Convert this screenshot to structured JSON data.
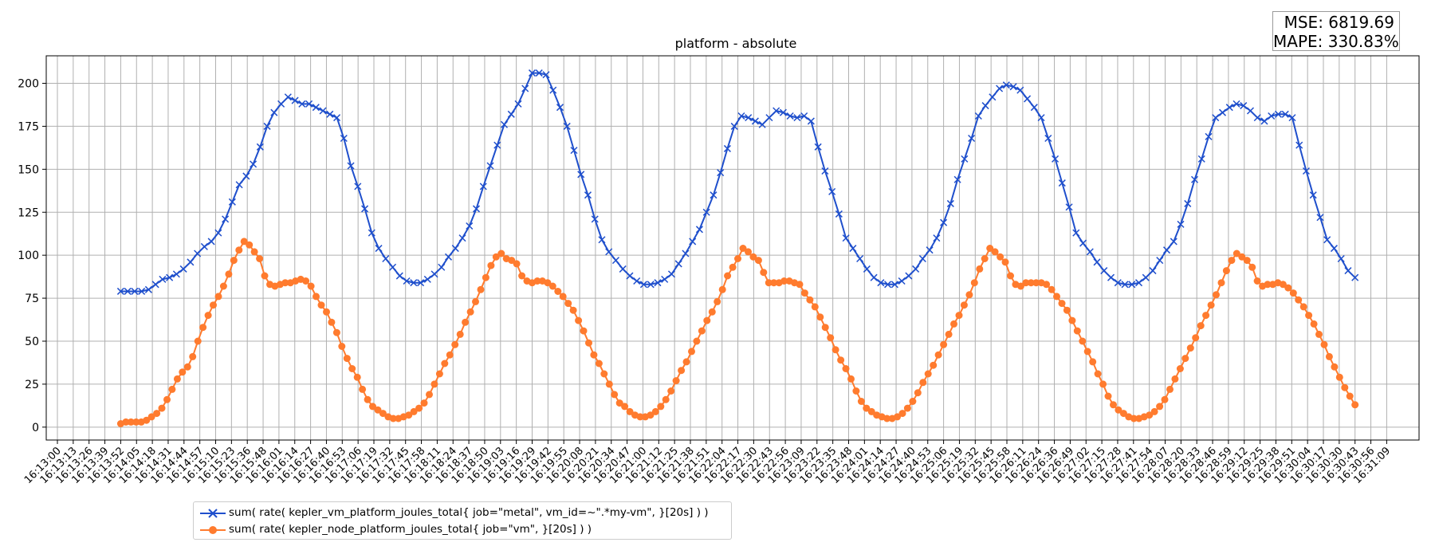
{
  "metrics": {
    "mse_text": "MSE: 6819.69",
    "mape_text": "MAPE: 330.83%"
  },
  "chart_data": {
    "type": "line",
    "title": "platform - absolute",
    "xlabel": "",
    "ylabel": "",
    "ylim": [
      -7.5,
      216
    ],
    "yticks": [
      0,
      25,
      50,
      75,
      100,
      125,
      150,
      175,
      200
    ],
    "grid": true,
    "legend_placement": "bottom-left",
    "x_tick_labels": [
      "16:13:00",
      "16:13:13",
      "16:13:26",
      "16:13:39",
      "16:13:52",
      "16:14:05",
      "16:14:18",
      "16:14:31",
      "16:14:44",
      "16:14:57",
      "16:15:10",
      "16:15:23",
      "16:15:36",
      "16:15:48",
      "16:16:01",
      "16:16:14",
      "16:16:27",
      "16:16:40",
      "16:16:53",
      "16:17:06",
      "16:17:19",
      "16:17:32",
      "16:17:45",
      "16:17:58",
      "16:18:11",
      "16:18:24",
      "16:18:37",
      "16:18:50",
      "16:19:03",
      "16:19:16",
      "16:19:29",
      "16:19:42",
      "16:19:55",
      "16:20:08",
      "16:20:21",
      "16:20:34",
      "16:20:47",
      "16:21:00",
      "16:21:12",
      "16:21:25",
      "16:21:38",
      "16:21:51",
      "16:22:04",
      "16:22:17",
      "16:22:30",
      "16:22:43",
      "16:22:56",
      "16:23:09",
      "16:23:22",
      "16:23:35",
      "16:23:48",
      "16:24:01",
      "16:24:14",
      "16:24:27",
      "16:24:40",
      "16:24:53",
      "16:25:06",
      "16:25:19",
      "16:25:32",
      "16:25:45",
      "16:25:58",
      "16:26:11",
      "16:26:24",
      "16:26:36",
      "16:26:49",
      "16:27:02",
      "16:27:15",
      "16:27:28",
      "16:27:41",
      "16:27:54",
      "16:28:07",
      "16:28:20",
      "16:28:33",
      "16:28:46",
      "16:28:59",
      "16:29:12",
      "16:29:25",
      "16:29:38",
      "16:29:51",
      "16:30:04",
      "16:30:17",
      "16:30:30",
      "16:30:43",
      "16:30:56",
      "16:31:09"
    ],
    "series": [
      {
        "name": "sum( rate( kepler_vm_platform_joules_total{ job=\"metal\", vm_id=~\".*my-vm\", }[20s] ) )",
        "color": "#1f4fcc",
        "marker": "x",
        "x_start": "16:13:52",
        "x_end": "16:30:43",
        "values": [
          79,
          79,
          79,
          79,
          80,
          83,
          86,
          87,
          89,
          92,
          96,
          101,
          105,
          108,
          113,
          121,
          131,
          141,
          146,
          153,
          163,
          175,
          183,
          188,
          192,
          190,
          188,
          188,
          186,
          184,
          182,
          180,
          168,
          152,
          140,
          127,
          113,
          104,
          98,
          93,
          88,
          85,
          84,
          84,
          86,
          89,
          93,
          99,
          104,
          110,
          117,
          127,
          140,
          152,
          164,
          176,
          182,
          188,
          197,
          206,
          206,
          205,
          196,
          186,
          175,
          161,
          147,
          135,
          121,
          109,
          102,
          97,
          92,
          88,
          85,
          83,
          83,
          84,
          86,
          89,
          95,
          101,
          108,
          115,
          125,
          135,
          148,
          162,
          175,
          181,
          180,
          178,
          176,
          180,
          184,
          183,
          181,
          180,
          181,
          178,
          163,
          149,
          137,
          124,
          110,
          104,
          98,
          92,
          87,
          84,
          83,
          83,
          85,
          88,
          92,
          98,
          103,
          110,
          119,
          130,
          144,
          156,
          168,
          181,
          187,
          192,
          197,
          199,
          198,
          196,
          191,
          186,
          180,
          168,
          156,
          142,
          128,
          113,
          107,
          102,
          96,
          91,
          87,
          84,
          83,
          83,
          84,
          87,
          91,
          97,
          103,
          108,
          118,
          130,
          144,
          156,
          169,
          180,
          183,
          186,
          188,
          187,
          184,
          180,
          178,
          181,
          182,
          182,
          180,
          164,
          149,
          135,
          122,
          109,
          104,
          98,
          91,
          87
        ]
      },
      {
        "name": "sum( rate( kepler_node_platform_joules_total{ job=\"vm\", }[20s] ) )",
        "color": "#ff7b2e",
        "marker": "o",
        "x_start": "16:13:52",
        "x_end": "16:30:43",
        "values": [
          2,
          3,
          3,
          3,
          3,
          4,
          6,
          8,
          11,
          16,
          22,
          28,
          32,
          35,
          41,
          50,
          58,
          65,
          71,
          76,
          82,
          89,
          97,
          103,
          108,
          106,
          102,
          98,
          88,
          83,
          82,
          83,
          84,
          84,
          85,
          86,
          85,
          82,
          76,
          71,
          67,
          61,
          55,
          47,
          40,
          34,
          29,
          22,
          16,
          12,
          10,
          8,
          6,
          5,
          5,
          6,
          7,
          9,
          11,
          14,
          19,
          25,
          31,
          37,
          42,
          48,
          54,
          61,
          67,
          73,
          80,
          87,
          94,
          99,
          101,
          98,
          97,
          95,
          88,
          85,
          84,
          85,
          85,
          84,
          82,
          79,
          76,
          72,
          68,
          62,
          56,
          49,
          42,
          37,
          31,
          25,
          19,
          14,
          12,
          9,
          7,
          6,
          6,
          7,
          9,
          12,
          16,
          21,
          27,
          33,
          38,
          44,
          50,
          56,
          62,
          67,
          73,
          80,
          88,
          93,
          98,
          104,
          102,
          99,
          97,
          90,
          84,
          84,
          84,
          85,
          85,
          84,
          83,
          78,
          74,
          70,
          64,
          58,
          52,
          45,
          39,
          34,
          28,
          21,
          15,
          11,
          9,
          7,
          6,
          5,
          5,
          6,
          8,
          11,
          15,
          20,
          26,
          31,
          36,
          42,
          48,
          54,
          60,
          65,
          71,
          77,
          84,
          92,
          98,
          104,
          102,
          99,
          96,
          88,
          83,
          82,
          84,
          84,
          84,
          84,
          83,
          80,
          76,
          72,
          68,
          62,
          56,
          50,
          44,
          38,
          31,
          25,
          18,
          13,
          10,
          8,
          6,
          5,
          5,
          6,
          7,
          9,
          12,
          16,
          22,
          28,
          34,
          40,
          46,
          52,
          59,
          65,
          71,
          77,
          84,
          91,
          97,
          101,
          99,
          97,
          93,
          85,
          82,
          83,
          83,
          84,
          83,
          81,
          78,
          74,
          70,
          65,
          60,
          54,
          48,
          41,
          35,
          29,
          23,
          18,
          13
        ]
      }
    ]
  }
}
